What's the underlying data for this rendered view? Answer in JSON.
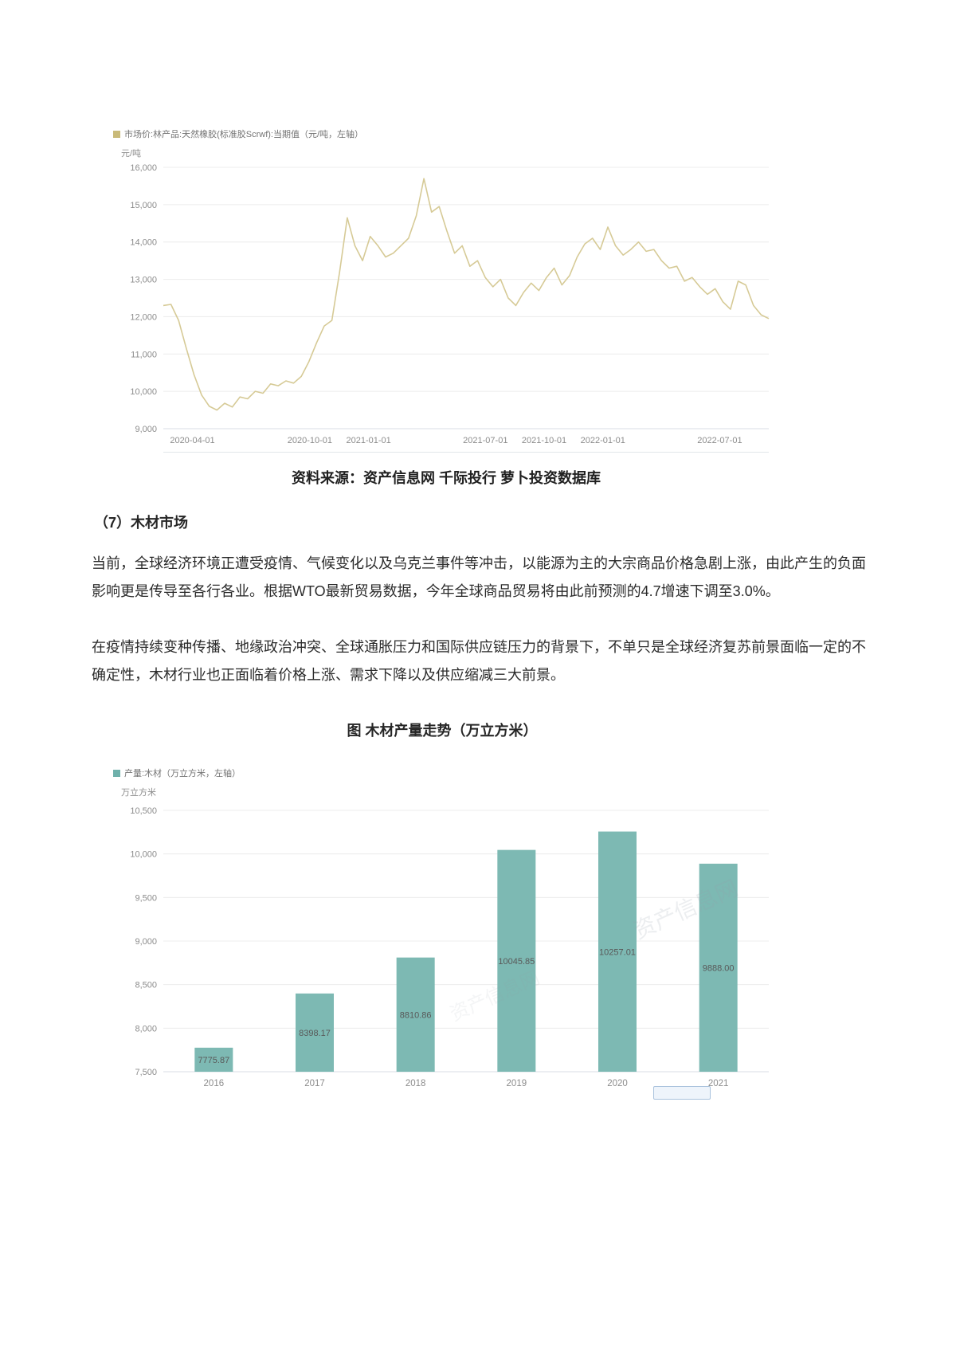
{
  "page": {
    "source_caption": "资料来源：资产信息网 千际投行 萝卜投资数据库",
    "section_heading": "（7）木材市场",
    "paragraphs": [
      "当前，全球经济环境正遭受疫情、气候变化以及乌克兰事件等冲击，以能源为主的大宗商品价格急剧上涨，由此产生的负面影响更是传导至各行各业。根据WTO最新贸易数据，今年全球商品贸易将由此前预测的4.7增速下调至3.0%。",
      "在疫情持续变种传播、地缘政治冲突、全球通胀压力和国际供应链压力的背景下，不单只是全球经济复苏前景面临一定的不确定性，木材行业也正面临着价格上涨、需求下降以及供应缩减三大前景。"
    ],
    "figure_title": "图 木材产量走势（万立方米）",
    "watermark": "资产信息网"
  },
  "chart_data": [
    {
      "type": "line",
      "legend": "市场价:林产品:天然橡胶(标准胶Scrwf):当期值（元/吨，左轴）",
      "unit": "元/吨",
      "ylim": [
        9000,
        16000
      ],
      "y_ticks": [
        9000,
        10000,
        11000,
        12000,
        13000,
        14000,
        15000,
        16000
      ],
      "x_ticks": [
        {
          "label": "2020-04-01",
          "pos": 0.048
        },
        {
          "label": "2020-10-01",
          "pos": 0.242
        },
        {
          "label": "2021-01-01",
          "pos": 0.339
        },
        {
          "label": "2021-07-01",
          "pos": 0.532
        },
        {
          "label": "2021-10-01",
          "pos": 0.629
        },
        {
          "label": "2022-01-01",
          "pos": 0.726
        },
        {
          "label": "2022-07-01",
          "pos": 0.919
        }
      ],
      "values": [
        12300,
        12330,
        11900,
        11150,
        10450,
        9900,
        9600,
        9500,
        9680,
        9580,
        9850,
        9800,
        10000,
        9950,
        10200,
        10150,
        10280,
        10220,
        10400,
        10800,
        11300,
        11750,
        11900,
        13200,
        14650,
        13900,
        13500,
        14150,
        13900,
        13600,
        13700,
        13900,
        14100,
        14700,
        15700,
        14800,
        14950,
        14300,
        13700,
        13900,
        13350,
        13500,
        13050,
        12800,
        13000,
        12500,
        12300,
        12650,
        12900,
        12700,
        13050,
        13300,
        12850,
        13100,
        13600,
        13950,
        14100,
        13800,
        14400,
        13900,
        13650,
        13800,
        14000,
        13750,
        13800,
        13500,
        13300,
        13350,
        12950,
        13050,
        12800,
        12600,
        12750,
        12400,
        12200,
        12950,
        12850,
        12300,
        12050,
        11950
      ],
      "colors": {
        "line": "#d6ca96",
        "legend_swatch": "#c9ba79",
        "grid": "#ececec",
        "axis": "#d9dee4",
        "tick_text": "#8c8c8c"
      }
    },
    {
      "type": "bar",
      "legend": "产量:木材（万立方米，左轴）",
      "unit": "万立方米",
      "ylim": [
        7500,
        10500
      ],
      "y_ticks": [
        7500,
        8000,
        8500,
        9000,
        9500,
        10000,
        10500
      ],
      "categories": [
        "2016",
        "2017",
        "2018",
        "2019",
        "2020",
        "2021"
      ],
      "values": [
        7775.87,
        8398.17,
        8810.86,
        10045.85,
        10257.01,
        9888.0
      ],
      "colors": {
        "bar": "#7db9b3",
        "legend_swatch": "#6fb1ab",
        "grid": "#ececec",
        "axis": "#d9dee4",
        "tick_text": "#8c8c8c",
        "value_label": "#595959"
      }
    }
  ]
}
